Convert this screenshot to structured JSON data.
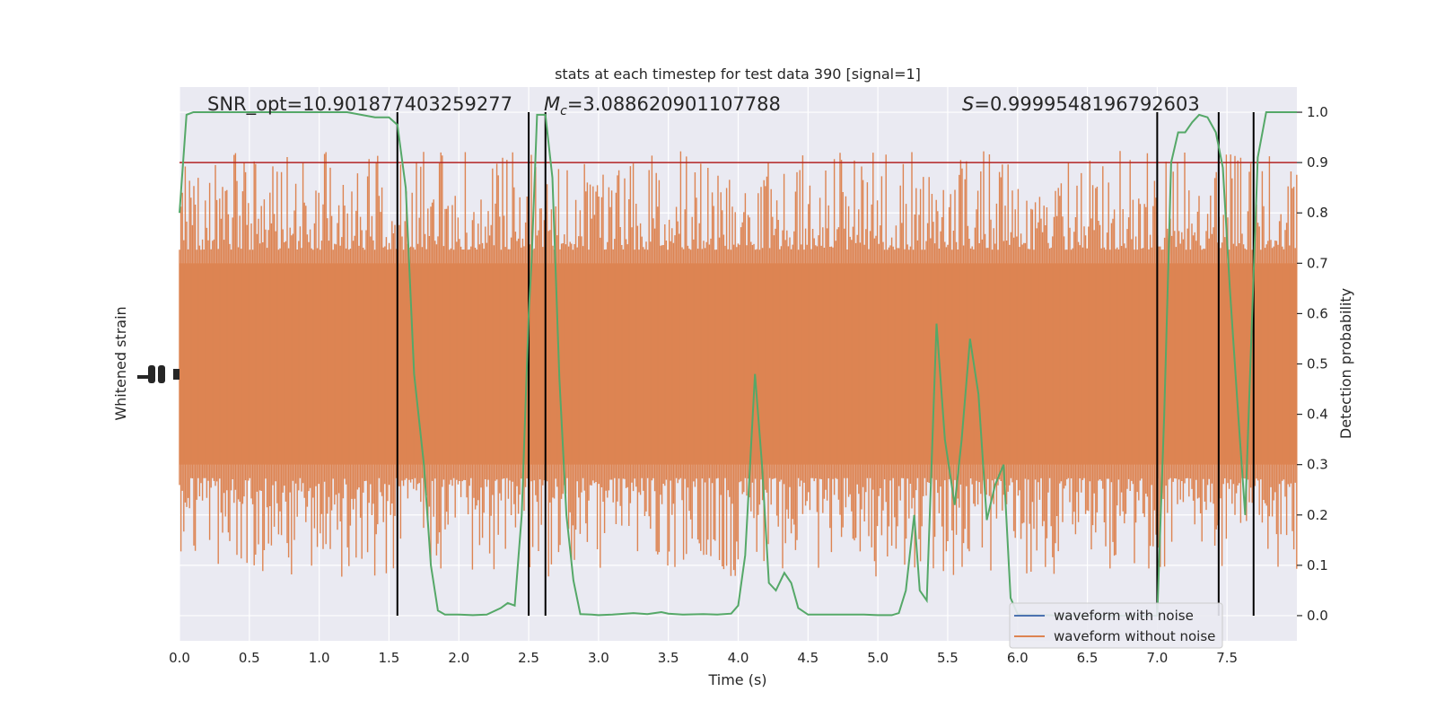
{
  "chart_data": {
    "type": "line",
    "title": "stats at each timestep for test data 390 [signal=1]",
    "xlabel": "Time (s)",
    "ylabel_left": "Whitened strain",
    "ylabel_right": "Detection probability",
    "xlim": [
      0.0,
      8.0
    ],
    "ylim_right": [
      -0.05,
      1.05
    ],
    "x_ticks": [
      "0.0",
      "0.5",
      "1.0",
      "1.5",
      "2.0",
      "2.5",
      "3.0",
      "3.5",
      "4.0",
      "4.5",
      "5.0",
      "5.5",
      "6.0",
      "6.5",
      "7.0",
      "7.5"
    ],
    "x_tick_values": [
      0.0,
      0.5,
      1.0,
      1.5,
      2.0,
      2.5,
      3.0,
      3.5,
      4.0,
      4.5,
      5.0,
      5.5,
      6.0,
      6.5,
      7.0,
      7.5
    ],
    "y_right_ticks": [
      "0.0",
      "0.1",
      "0.2",
      "0.3",
      "0.4",
      "0.5",
      "0.6",
      "0.7",
      "0.8",
      "0.9",
      "1.0"
    ],
    "y_right_tick_values": [
      0.0,
      0.1,
      0.2,
      0.3,
      0.4,
      0.5,
      0.6,
      0.7,
      0.8,
      0.9,
      1.0
    ],
    "grid": true,
    "background": "#eaeaf2",
    "annotations": {
      "snr": "SNR_opt=10.901877403259277",
      "mc_symbol": "M",
      "mc_sub": "c",
      "mc_value": "=3.088620901107788",
      "s_symbol": "S",
      "s_value": "=0.9999548196792603"
    },
    "threshold": {
      "y": 0.9,
      "color": "#b22222"
    },
    "vertical_lines": [
      1.56,
      2.5,
      2.62,
      7.0,
      7.44,
      7.69
    ],
    "strain_band": {
      "color": "#dd8452",
      "core_low": 0.3,
      "core_high": 0.7
    },
    "series": [
      {
        "name": "waveform with noise",
        "color": "#4c72b0"
      },
      {
        "name": "waveform without noise",
        "color": "#dd8452"
      },
      {
        "color": "#55a868",
        "x": [
          0.0,
          0.05,
          0.1,
          0.2,
          0.5,
          1.0,
          1.2,
          1.3,
          1.4,
          1.5,
          1.56,
          1.62,
          1.68,
          1.75,
          1.8,
          1.85,
          1.9,
          1.95,
          2.0,
          2.1,
          2.2,
          2.3,
          2.35,
          2.4,
          2.45,
          2.5,
          2.52,
          2.56,
          2.62,
          2.67,
          2.72,
          2.77,
          2.82,
          2.87,
          2.95,
          3.0,
          3.1,
          3.25,
          3.35,
          3.45,
          3.5,
          3.6,
          3.75,
          3.85,
          3.95,
          4.0,
          4.05,
          4.12,
          4.17,
          4.22,
          4.27,
          4.33,
          4.38,
          4.43,
          4.5,
          4.6,
          4.75,
          4.9,
          5.0,
          5.1,
          5.15,
          5.2,
          5.26,
          5.3,
          5.35,
          5.42,
          5.48,
          5.55,
          5.6,
          5.66,
          5.72,
          5.78,
          5.84,
          5.9,
          5.95,
          6.0,
          6.06,
          6.12,
          6.18,
          6.22,
          6.3,
          6.4,
          6.5,
          6.6,
          6.7,
          6.8,
          6.9,
          6.95,
          7.0,
          7.05,
          7.1,
          7.15,
          7.2,
          7.25,
          7.3,
          7.36,
          7.42,
          7.47,
          7.52,
          7.58,
          7.63,
          7.68,
          7.72,
          7.78,
          7.85,
          7.9,
          7.95,
          8.0
        ],
        "values": [
          0.8,
          0.995,
          1.0,
          1.0,
          1.0,
          1.0,
          1.0,
          0.995,
          0.99,
          0.99,
          0.975,
          0.85,
          0.48,
          0.3,
          0.1,
          0.01,
          0.002,
          0.002,
          0.002,
          0.001,
          0.002,
          0.015,
          0.025,
          0.02,
          0.2,
          0.6,
          0.7,
          0.995,
          0.995,
          0.87,
          0.47,
          0.2,
          0.07,
          0.003,
          0.002,
          0.001,
          0.002,
          0.005,
          0.003,
          0.007,
          0.004,
          0.002,
          0.003,
          0.002,
          0.004,
          0.02,
          0.12,
          0.48,
          0.3,
          0.065,
          0.05,
          0.085,
          0.065,
          0.015,
          0.002,
          0.002,
          0.002,
          0.002,
          0.001,
          0.001,
          0.005,
          0.05,
          0.2,
          0.05,
          0.03,
          0.58,
          0.35,
          0.22,
          0.35,
          0.55,
          0.44,
          0.19,
          0.26,
          0.3,
          0.035,
          0.003,
          0.002,
          0.002,
          0.001,
          0.001,
          0.0,
          0.0,
          0.0,
          0.0,
          0.0,
          0.0,
          0.0,
          0.0,
          0.0,
          0.4,
          0.9,
          0.96,
          0.96,
          0.98,
          0.995,
          0.99,
          0.96,
          0.89,
          0.65,
          0.4,
          0.2,
          0.6,
          0.91,
          1.0,
          1.0,
          1.0,
          1.0,
          1.0
        ]
      }
    ],
    "legend": {
      "location": "lower-right"
    }
  }
}
